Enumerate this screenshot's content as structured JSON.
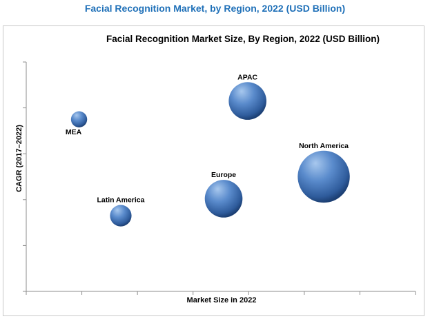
{
  "page_title": "Facial Recognition Market, by Region, 2022 (USD Billion)",
  "colors": {
    "title": "#1f70b8",
    "bubble_light": "#a8c8ee",
    "bubble_mid": "#4f81bd",
    "bubble_dark": "#1c3f73",
    "axis": "#8c8c8c"
  },
  "chart_data": {
    "type": "scatter",
    "subtype": "bubble",
    "title": "Facial Recognition Market Size, By Region, 2022 (USD Billion)",
    "xlabel": "Market Size in 2022",
    "ylabel": "CAGR (2017–2022)",
    "xlim": [
      0,
      7
    ],
    "ylim": [
      0,
      5
    ],
    "x_ticks": [
      0,
      1,
      2,
      3,
      4,
      5,
      6,
      7
    ],
    "y_ticks": [
      0,
      1,
      2,
      3,
      4,
      5
    ],
    "tick_labels_shown": false,
    "grid": false,
    "legend": "none",
    "points": [
      {
        "label": "APAC",
        "x": 3.98,
        "y": 4.15,
        "size": 1.05,
        "label_position": "top"
      },
      {
        "label": "North America",
        "x": 5.35,
        "y": 2.5,
        "size": 1.45,
        "label_position": "top"
      },
      {
        "label": "Europe",
        "x": 3.55,
        "y": 2.02,
        "size": 1.05,
        "label_position": "top"
      },
      {
        "label": "Latin America",
        "x": 1.7,
        "y": 1.65,
        "size": 0.6,
        "label_position": "top"
      },
      {
        "label": "MEA",
        "x": 0.95,
        "y": 3.75,
        "size": 0.45,
        "label_position": "bottom-left"
      }
    ]
  }
}
